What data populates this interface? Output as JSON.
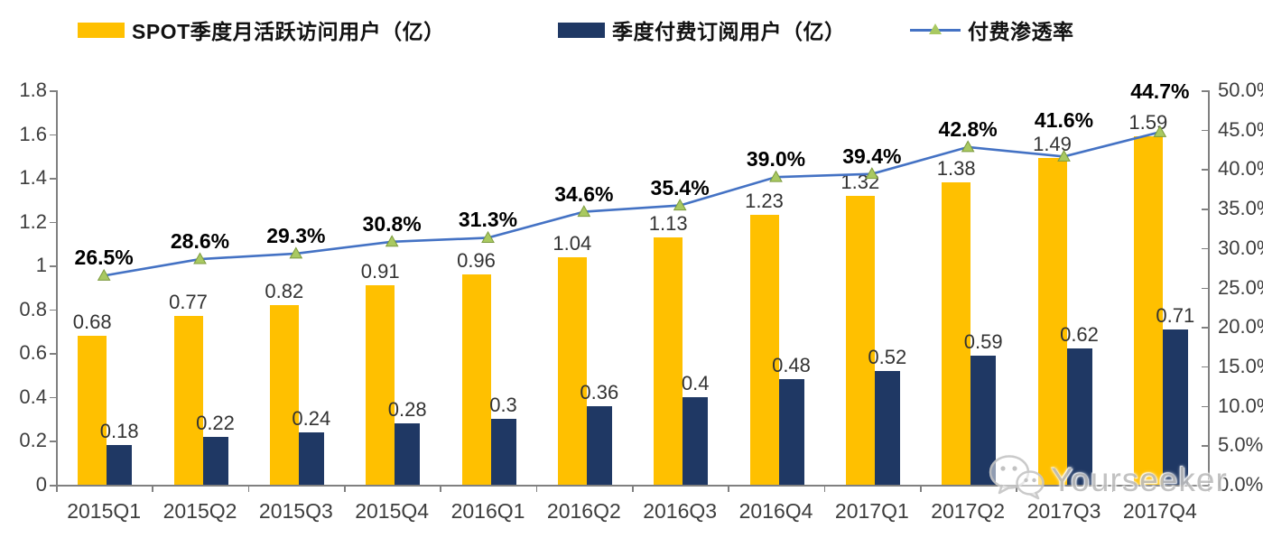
{
  "legend": {
    "items": [
      {
        "label": "SPOT季度月活跃访问用户（亿）",
        "swatch": "bar",
        "color": "#FFC000"
      },
      {
        "label": "季度付费订阅用户（亿）",
        "swatch": "bar",
        "color": "#1F3864"
      },
      {
        "label": "付费渗透率",
        "swatch": "line-triangle",
        "color": "#4472C4",
        "marker_color": "#A9C961"
      }
    ]
  },
  "chart_data": {
    "type": "combo bar + line",
    "categories": [
      "2015Q1",
      "2015Q2",
      "2015Q3",
      "2015Q4",
      "2016Q1",
      "2016Q2",
      "2016Q3",
      "2016Q4",
      "2017Q1",
      "2017Q2",
      "2017Q3",
      "2017Q4"
    ],
    "series": [
      {
        "name": "SPOT季度月活跃访问用户（亿）",
        "type": "bar",
        "axis": "left",
        "color": "#FFC000",
        "values": [
          0.68,
          0.77,
          0.82,
          0.91,
          0.96,
          1.04,
          1.13,
          1.23,
          1.32,
          1.38,
          1.49,
          1.59
        ],
        "labels": [
          "0.68",
          "0.77",
          "0.82",
          "0.91",
          "0.96",
          "1.04",
          "1.13",
          "1.23",
          "1.32",
          "1.38",
          "1.49",
          "1.59"
        ]
      },
      {
        "name": "季度付费订阅用户（亿）",
        "type": "bar",
        "axis": "left",
        "color": "#1F3864",
        "values": [
          0.18,
          0.22,
          0.24,
          0.28,
          0.3,
          0.36,
          0.4,
          0.48,
          0.52,
          0.59,
          0.62,
          0.71
        ],
        "labels": [
          "0.18",
          "0.22",
          "0.24",
          "0.28",
          "0.3",
          "0.36",
          "0.4",
          "0.48",
          "0.52",
          "0.59",
          "0.62",
          "0.71"
        ]
      },
      {
        "name": "付费渗透率",
        "type": "line",
        "axis": "right",
        "color": "#4472C4",
        "marker": "triangle",
        "marker_color": "#A9C961",
        "marker_edge_color": "#7C9A3E",
        "values": [
          26.5,
          28.6,
          29.3,
          30.8,
          31.3,
          34.6,
          35.4,
          39.0,
          39.4,
          42.8,
          41.6,
          44.7
        ],
        "labels": [
          "26.5%",
          "28.6%",
          "29.3%",
          "30.8%",
          "31.3%",
          "34.6%",
          "35.4%",
          "39.0%",
          "39.4%",
          "42.8%",
          "41.6%",
          "44.7%"
        ]
      }
    ],
    "left_axis": {
      "min": 0,
      "max": 1.8,
      "step": 0.2,
      "tick_labels": [
        "0",
        "0.2",
        "0.4",
        "0.6",
        "0.8",
        "1",
        "1.2",
        "1.4",
        "1.6",
        "1.8"
      ]
    },
    "right_axis": {
      "min": 0,
      "max": 50,
      "step": 5,
      "tick_labels": [
        "0.0%",
        "5.0%",
        "10.0%",
        "15.0%",
        "20.0%",
        "25.0%",
        "30.0%",
        "35.0%",
        "40.0%",
        "45.0%",
        "50.0%"
      ]
    },
    "grid": false,
    "legend_position": "top",
    "label_layout": {
      "pct_label_dy": [
        -33,
        -33,
        -33,
        -33,
        -33,
        -33,
        -33,
        -33,
        -33,
        -33,
        -53,
        -58
      ],
      "value_label_dy": -28
    }
  },
  "watermark": {
    "text": "Yourseeker",
    "icon": "wechat-icon"
  }
}
